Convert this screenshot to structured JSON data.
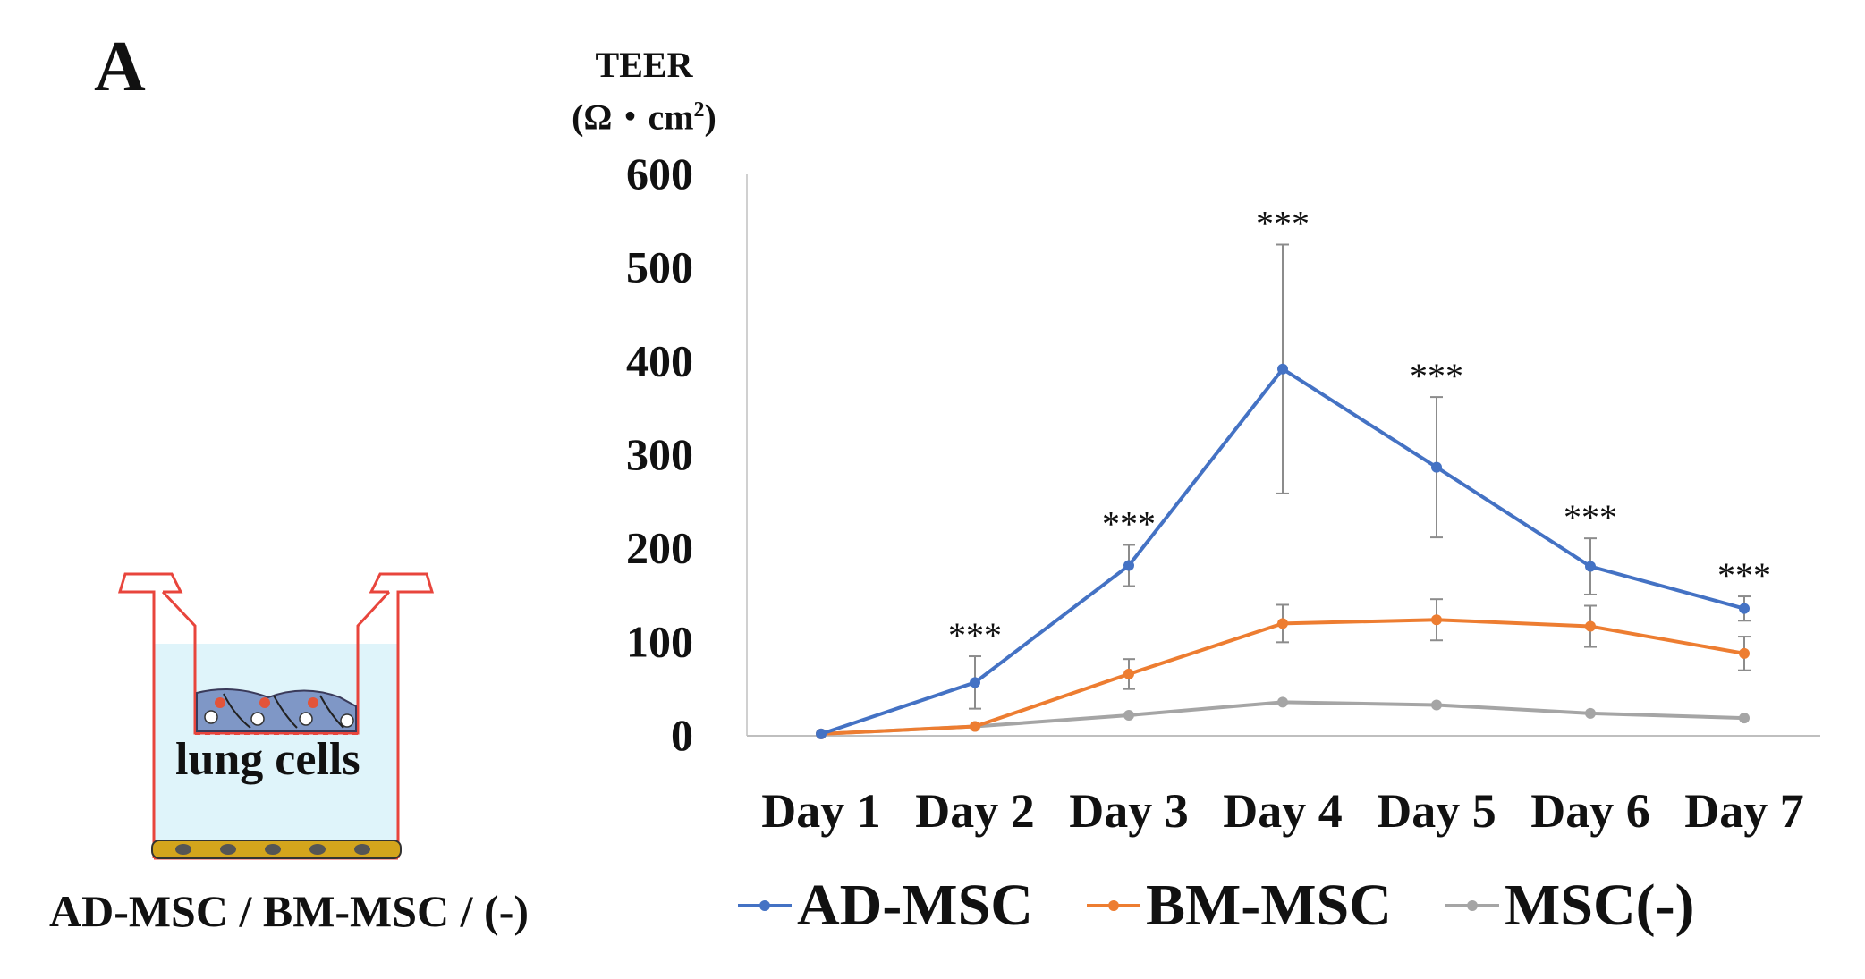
{
  "panel_label": "A",
  "diagram": {
    "cells_label": "lung cells",
    "caption": "AD-MSC / BM-MSC / (-)"
  },
  "chart_data": {
    "type": "line",
    "title": "",
    "ylabel_line1": "TEER",
    "ylabel_line2_base": "(Ω・cm",
    "ylabel_line2_sup": "2",
    "ylabel_line2_end": ")",
    "xlabel": "",
    "ylim": [
      0,
      600
    ],
    "yticks": [
      0,
      100,
      200,
      300,
      400,
      500,
      600
    ],
    "categories": [
      "Day 1",
      "Day 2",
      "Day 3",
      "Day 4",
      "Day 5",
      "Day 6",
      "Day 7"
    ],
    "grid": false,
    "legend_position": "bottom",
    "series": [
      {
        "name": "AD-MSC",
        "color": "#4472C4",
        "values": [
          2,
          57,
          182,
          392,
          287,
          181,
          136
        ],
        "errors": [
          0,
          28,
          22,
          133,
          75,
          30,
          13
        ]
      },
      {
        "name": "BM-MSC",
        "color": "#ED7D31",
        "values": [
          2,
          10,
          66,
          120,
          124,
          117,
          88
        ],
        "errors": [
          0,
          0,
          16,
          20,
          22,
          22,
          18
        ]
      },
      {
        "name": "MSC(-)",
        "color": "#A5A5A5",
        "values": [
          2,
          10,
          22,
          36,
          33,
          24,
          19
        ],
        "errors": [
          0,
          0,
          0,
          0,
          0,
          0,
          0
        ]
      }
    ],
    "annotations": [
      "***",
      "***",
      "***",
      "***",
      "***",
      "***"
    ],
    "annotation_days": [
      "Day 2",
      "Day 3",
      "Day 4",
      "Day 5",
      "Day 6",
      "Day 7"
    ]
  }
}
